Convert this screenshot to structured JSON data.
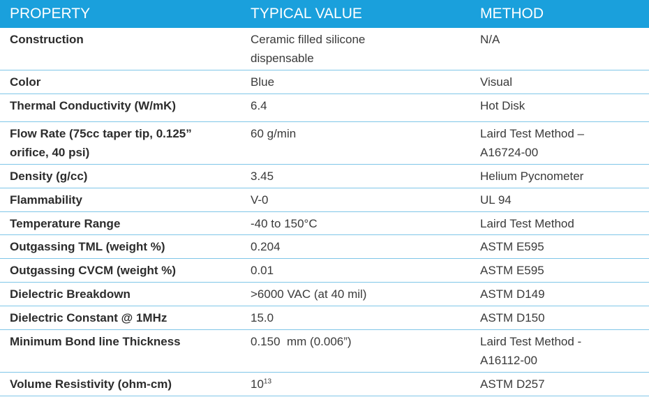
{
  "header": {
    "property": "PROPERTY",
    "typical_value": "TYPICAL VALUE",
    "method": "METHOD"
  },
  "rows": [
    {
      "property": "Construction",
      "value_lines": [
        "Ceramic filled silicone",
        "dispensable"
      ],
      "method_lines": [
        "N/A"
      ]
    },
    {
      "property": "Color",
      "value_lines": [
        "Blue"
      ],
      "method_lines": [
        "Visual"
      ]
    },
    {
      "property": "Thermal Conductivity (W/mK)",
      "value_lines": [
        "6.4"
      ],
      "method_lines": [
        "Hot Disk"
      ]
    },
    {
      "property_lines": [
        "Flow Rate (75cc taper tip, 0.125”",
        "orifice, 40 psi)"
      ],
      "value_lines": [
        "60 g/min"
      ],
      "method_lines": [
        "Laird Test Method –",
        "A16724-00"
      ]
    },
    {
      "property": "Density (g/cc)",
      "value_lines": [
        "3.45"
      ],
      "method_lines": [
        "Helium Pycnometer"
      ]
    },
    {
      "property": "Flammability",
      "value_lines": [
        "V-0"
      ],
      "method_lines": [
        "UL 94"
      ]
    },
    {
      "property": "Temperature Range",
      "value_lines": [
        "-40 to 150°C"
      ],
      "method_lines": [
        "Laird Test Method"
      ]
    },
    {
      "property": "Outgassing TML (weight %)",
      "value_lines": [
        "0.204"
      ],
      "method_lines": [
        "ASTM E595"
      ]
    },
    {
      "property": "Outgassing CVCM (weight %)",
      "value_lines": [
        "0.01"
      ],
      "method_lines": [
        "ASTM E595"
      ]
    },
    {
      "property": "Dielectric Breakdown",
      "value_lines": [
        ">6000 VAC (at 40 mil)"
      ],
      "method_lines": [
        "ASTM D149"
      ]
    },
    {
      "property": "Dielectric Constant @ 1MHz",
      "value_lines": [
        "15.0"
      ],
      "method_lines": [
        "ASTM D150"
      ]
    },
    {
      "property": "Minimum Bond line Thickness",
      "value_lines": [
        "0.150  mm (0.006”)"
      ],
      "method_lines": [
        "Laird Test Method -",
        "A16112-00"
      ]
    },
    {
      "property": "Volume Resistivity (ohm-cm)",
      "value_base": "10",
      "value_exp": "13",
      "method_lines": [
        "ASTM D257"
      ]
    }
  ]
}
